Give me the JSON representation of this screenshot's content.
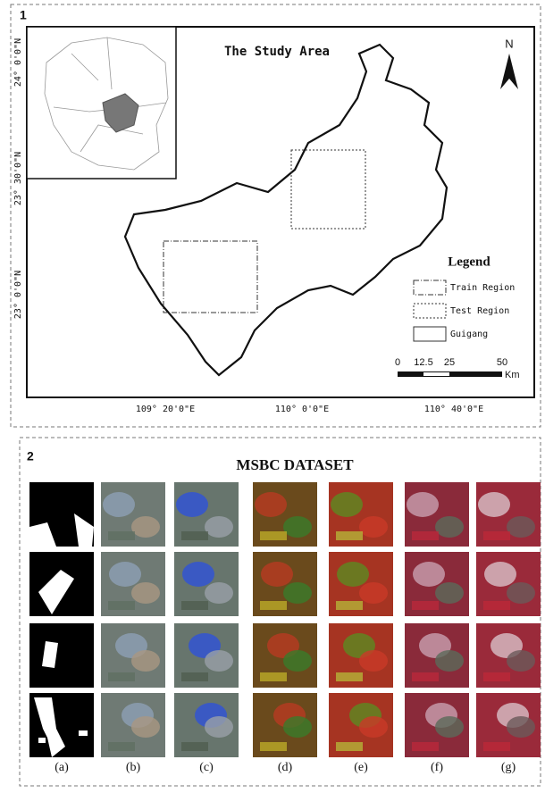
{
  "panel1": {
    "label": "1",
    "title": "The Study Area",
    "north": "N",
    "lat_labels": [
      "24° 0'0\"N",
      "23° 30'0\"N",
      "23° 0'0\"N"
    ],
    "lon_labels": [
      "109° 20'0\"E",
      "110° 0'0\"E",
      "110° 40'0\"E"
    ],
    "legend": {
      "title": "Legend",
      "items": [
        "Train Region",
        "Test Region",
        "Guigang"
      ]
    },
    "scale": {
      "ticks": [
        0,
        12.5,
        25,
        50
      ],
      "unit": "Km"
    }
  },
  "panel2": {
    "label": "2",
    "title": "MSBC DATASET",
    "captions": [
      "(a)",
      "(b)",
      "(c)",
      "(d)",
      "(e)",
      "(f)",
      "(g)"
    ]
  }
}
